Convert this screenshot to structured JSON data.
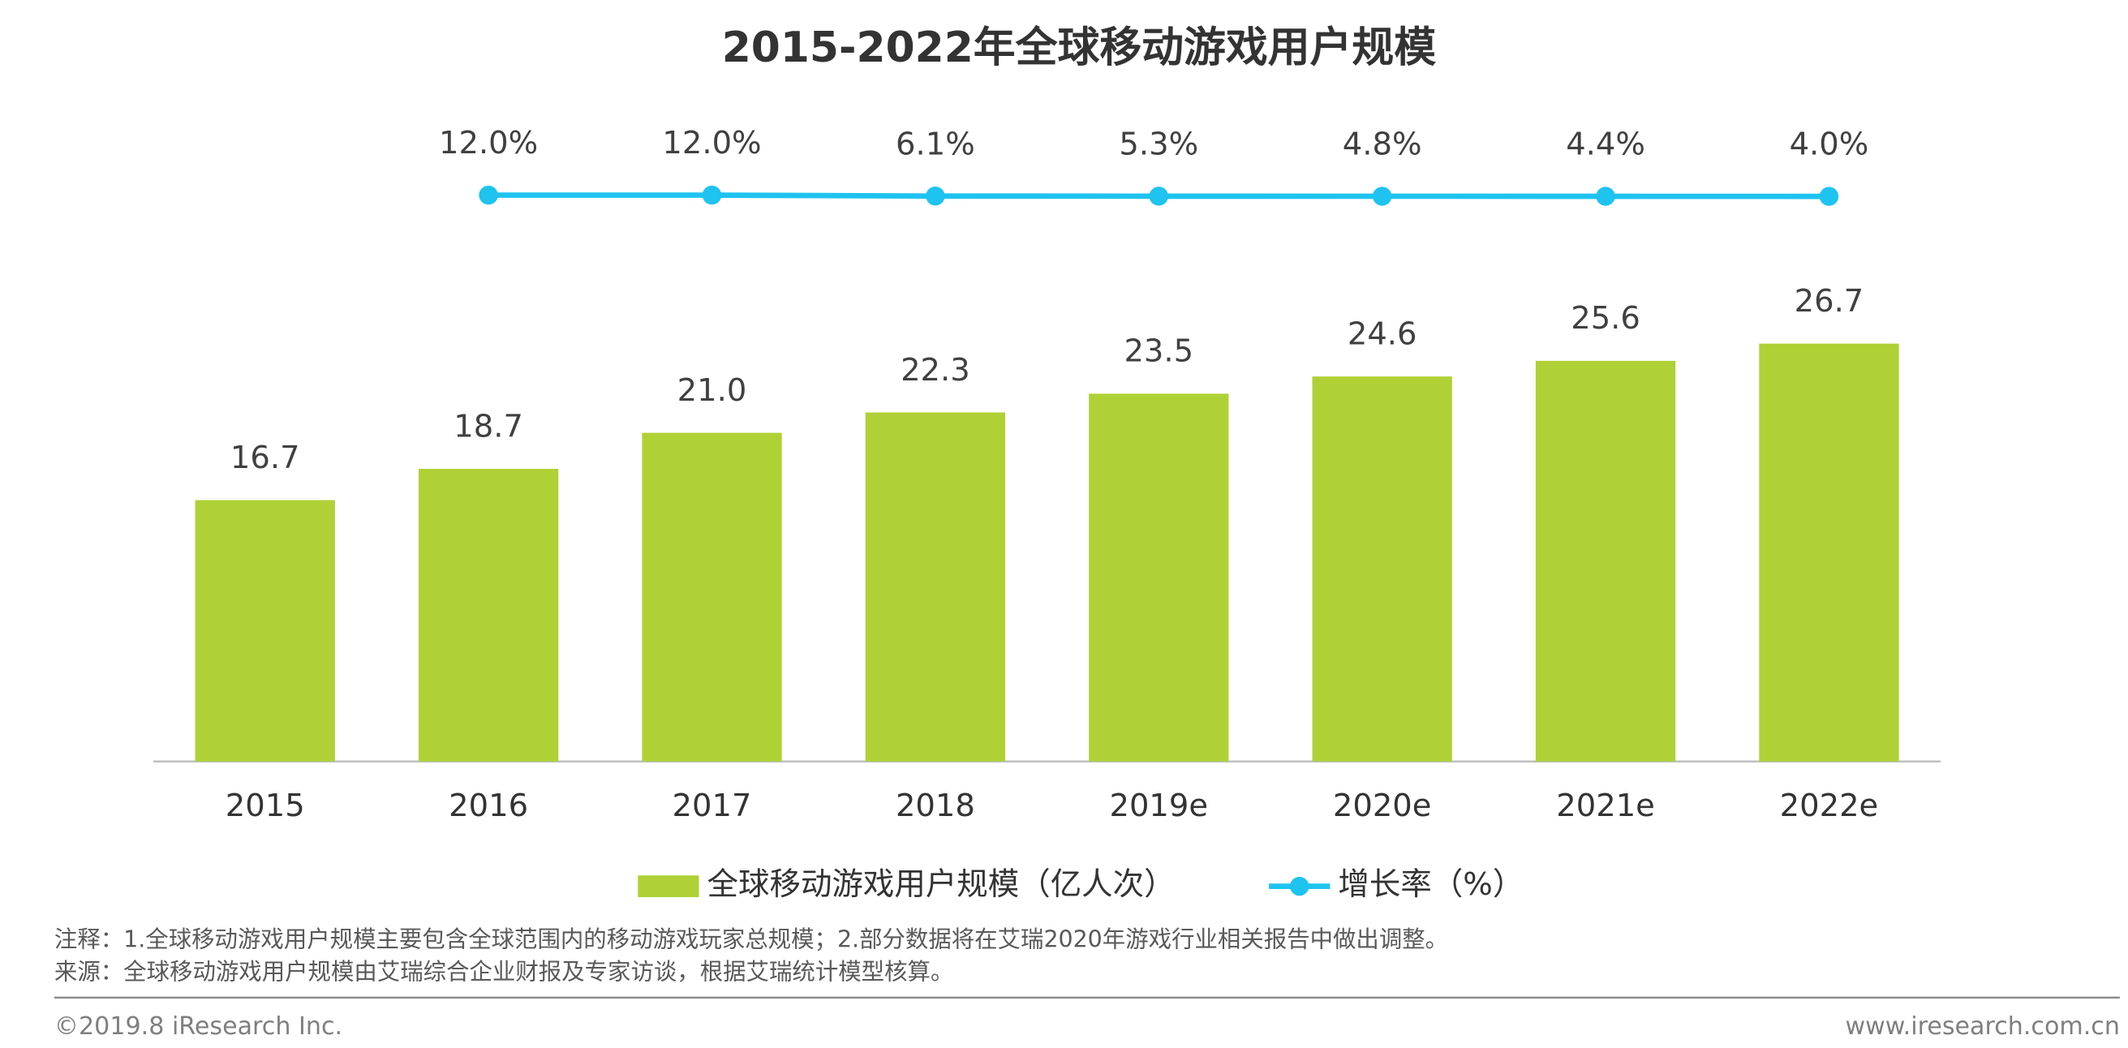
{
  "chart_data": {
    "type": "bar",
    "title": "2015-2022年全球移动游戏用户规模",
    "categories": [
      "2015",
      "2016",
      "2017",
      "2018",
      "2019e",
      "2020e",
      "2021e",
      "2022e"
    ],
    "series": [
      {
        "name": "全球移动游戏用户规模（亿人次）",
        "type": "bar",
        "color": "#afd136",
        "values": [
          16.7,
          18.7,
          21.0,
          22.3,
          23.5,
          24.6,
          25.6,
          26.7
        ],
        "value_labels": [
          "16.7",
          "18.7",
          "21.0",
          "22.3",
          "23.5",
          "24.6",
          "25.6",
          "26.7"
        ]
      },
      {
        "name": "增长率（%）",
        "type": "line",
        "axis": "y2",
        "color": "#1fc3ef",
        "values": [
          null,
          12.0,
          12.0,
          6.1,
          5.3,
          4.8,
          4.4,
          4.0
        ],
        "value_labels": [
          null,
          "12.0%",
          "12.0%",
          "6.1%",
          "5.3%",
          "4.8%",
          "4.4%",
          "4.0%"
        ]
      }
    ],
    "ylim": [
      0,
      30
    ],
    "y2lim": [
      -400,
      400
    ],
    "legend": "bottom",
    "notes": [
      "注释：1.全球移动游戏用户规模主要包含全球范围内的移动游戏玩家总规模；2.部分数据将在艾瑞2020年游戏行业相关报告中做出调整。",
      "来源：全球移动游戏用户规模由艾瑞综合企业财报及专家访谈，根据艾瑞统计模型核算。"
    ]
  },
  "footer": {
    "left": "©2019.8 iResearch Inc.",
    "right": "www.iresearch.com.cn"
  }
}
